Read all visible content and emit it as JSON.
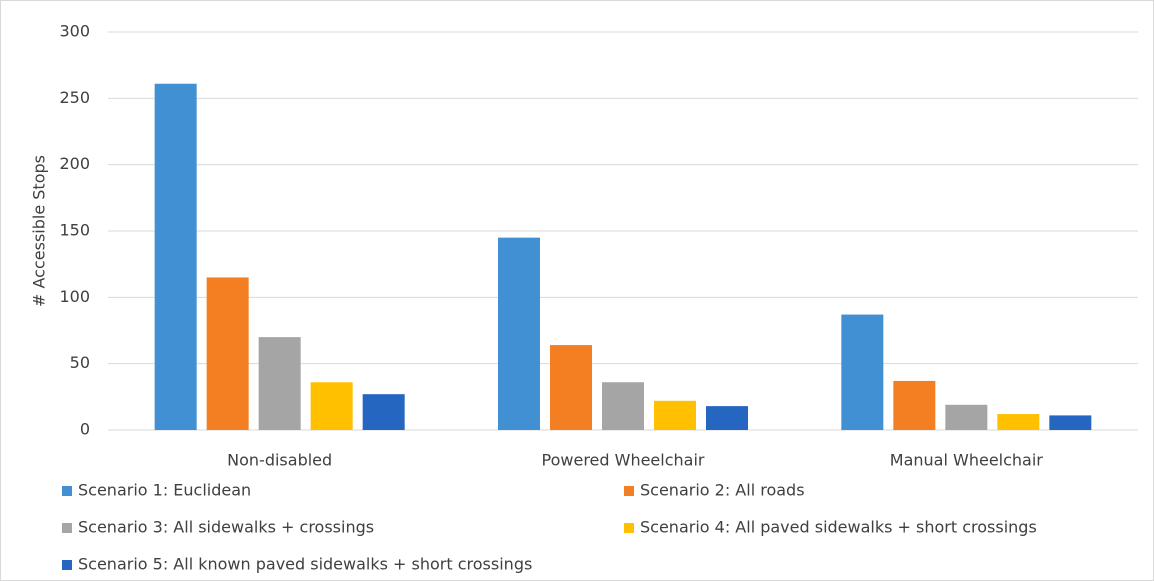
{
  "chart_data": {
    "type": "bar",
    "y_label": "# Accessible Stops",
    "categories": [
      "Non-disabled",
      "Powered Wheelchair",
      "Manual Wheelchair"
    ],
    "series": [
      {
        "name": "Scenario 1: Euclidean",
        "color": "#4090d3",
        "values": [
          261,
          145,
          87
        ]
      },
      {
        "name": "Scenario 2: All roads",
        "color": "#f47f22",
        "values": [
          115,
          64,
          37
        ]
      },
      {
        "name": "Scenario 3: All sidewalks + crossings",
        "color": "#a5a5a5",
        "values": [
          70,
          36,
          19
        ]
      },
      {
        "name": "Scenario 4: All paved sidewalks + short crossings",
        "color": "#ffc000",
        "values": [
          36,
          22,
          12
        ]
      },
      {
        "name": "Scenario 5: All known paved sidewalks + short crossings",
        "color": "#2566c0",
        "values": [
          27,
          18,
          11
        ]
      }
    ],
    "ylim": [
      0,
      300
    ],
    "yticks": [
      0,
      50,
      100,
      150,
      200,
      250,
      300
    ],
    "grid": true
  }
}
